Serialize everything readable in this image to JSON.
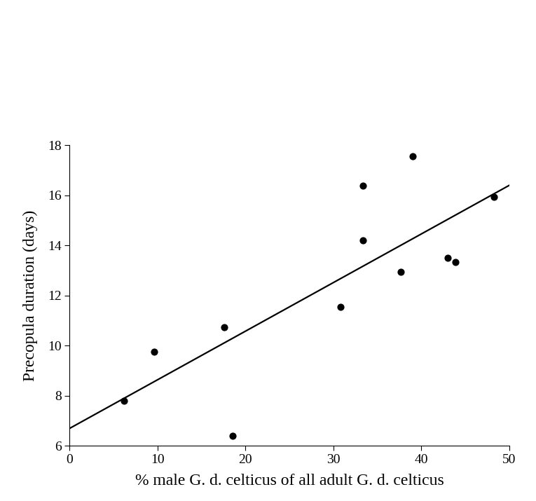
{
  "chart_data": {
    "type": "scatter",
    "x_label": "% male G. d. celticus of all adult G. d. celticus",
    "y_label": "Precopula duration (days)",
    "x": [
      6.2,
      9.6,
      17.6,
      18.5,
      30.8,
      33.4,
      33.4,
      37.7,
      39.0,
      43.0,
      43.9,
      48.3
    ],
    "values": [
      7.8,
      9.75,
      10.75,
      6.4,
      11.55,
      16.4,
      14.2,
      12.95,
      17.55,
      13.5,
      13.35,
      15.95
    ],
    "color": "#000000",
    "marker": "o",
    "trend_line": {
      "x": [
        0,
        50
      ],
      "y": [
        6.7,
        16.4
      ],
      "color": "#000000",
      "line_style": "solid"
    },
    "xlim": [
      0,
      50
    ],
    "ylim": [
      6,
      18
    ],
    "xticks": [
      0,
      10,
      20,
      30,
      40,
      50
    ],
    "yticks": [
      6,
      8,
      10,
      12,
      14,
      16,
      18
    ],
    "grid": false
  }
}
